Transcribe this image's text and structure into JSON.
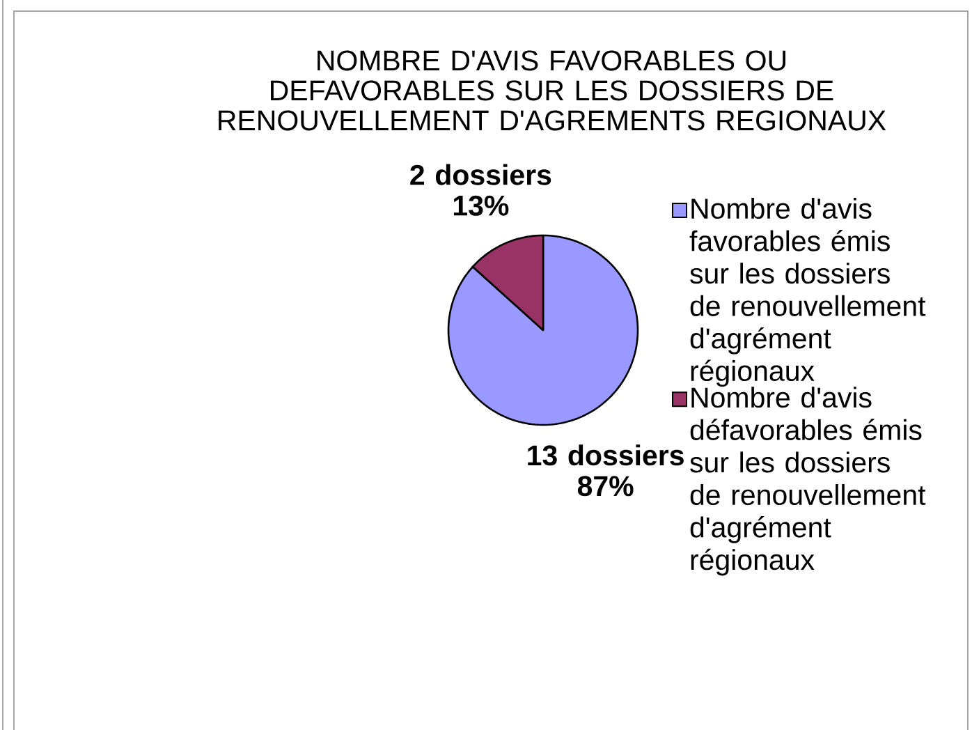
{
  "chart_data": {
    "type": "pie",
    "title": "NOMBRE D'AVIS FAVORABLES OU DEFAVORABLES SUR LES DOSSIERS DE RENOUVELLEMENT D'AGREMENTS REGIONAUX",
    "categories": [
      "Nombre d'avis favorables émis sur les dossiers de renouvellement d'agrément régionaux",
      "Nombre d'avis défavorables émis sur les dossiers de renouvellement d'agrément régionaux"
    ],
    "values": [
      13,
      2
    ],
    "colors": [
      "#9999ff",
      "#993366"
    ],
    "value_labels": [
      "13 dossiers 87%",
      "2 dossiers 13%"
    ],
    "legend": "right"
  }
}
